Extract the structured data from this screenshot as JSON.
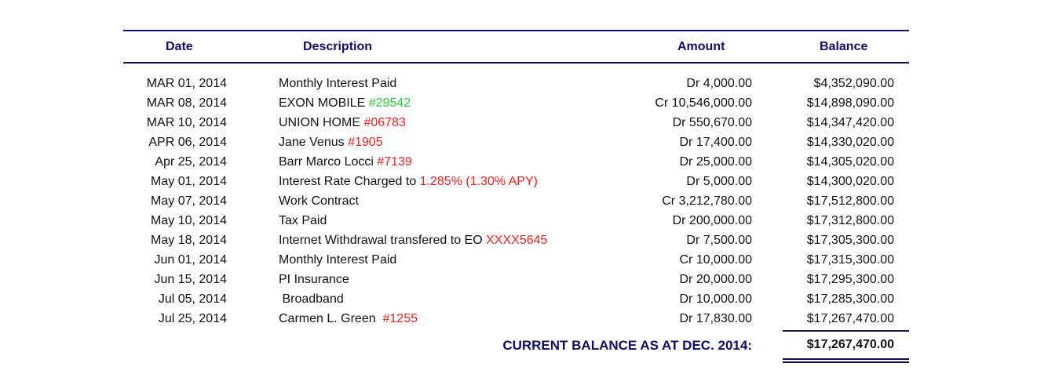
{
  "headers": {
    "date": "Date",
    "description": "Description",
    "amount": "Amount",
    "balance": "Balance"
  },
  "colors": {
    "header": "#0d0d6b",
    "highlight_red": "#ff1a1a",
    "highlight_green": "#22cc33"
  },
  "rows": [
    {
      "date": "MAR 01, 2014",
      "desc": "Monthly Interest Paid",
      "tag": "",
      "tag_color": "",
      "amount": "Dr 4,000.00",
      "balance": "$4,352,090.00"
    },
    {
      "date": "MAR 08, 2014",
      "desc": "EXON MOBILE ",
      "tag": "#29542",
      "tag_color": "#22cc33",
      "amount": "Cr 10,546,000.00",
      "balance": "$14,898,090.00"
    },
    {
      "date": "MAR 10, 2014",
      "desc": "UNION HOME ",
      "tag": "#06783",
      "tag_color": "#ff1a1a",
      "amount": "Dr 550,670.00",
      "balance": "$14,347,420.00"
    },
    {
      "date": "APR 06, 2014",
      "desc": "Jane Venus ",
      "tag": "#1905",
      "tag_color": "#ff1a1a",
      "amount": "Dr 17,400.00",
      "balance": "$14,330,020.00"
    },
    {
      "date": "Apr 25, 2014",
      "desc": "Barr Marco Locci ",
      "tag": "#7139",
      "tag_color": "#ff1a1a",
      "amount": "Dr 25,000.00",
      "balance": "$14,305,020.00"
    },
    {
      "date": "May 01, 2014",
      "desc": "Interest Rate Charged to ",
      "tag": "1.285% (1.30% APY)",
      "tag_color": "#ff1a1a",
      "amount": "Dr 5,000.00",
      "balance": "$14,300,020.00"
    },
    {
      "date": "May 07, 2014",
      "desc": "Work Contract",
      "tag": "",
      "tag_color": "",
      "amount": "Cr 3,212,780.00",
      "balance": "$17,512,800.00"
    },
    {
      "date": "May 10, 2014",
      "desc": "Tax Paid",
      "tag": "",
      "tag_color": "",
      "amount": "Dr 200,000.00",
      "balance": "$17,312,800.00"
    },
    {
      "date": "May 18, 2014",
      "desc": "Internet Withdrawal transfered to EO ",
      "tag": "XXXX5645",
      "tag_color": "#ff1a1a",
      "amount": "Dr 7,500.00",
      "balance": "$17,305,300.00"
    },
    {
      "date": "Jun 01, 2014",
      "desc": "Monthly Interest Paid",
      "tag": "",
      "tag_color": "",
      "amount": "Cr 10,000.00",
      "balance": "$17,315,300.00"
    },
    {
      "date": "Jun 15, 2014",
      "desc": "PI Insurance",
      "tag": "",
      "tag_color": "",
      "amount": "Dr 20,000.00",
      "balance": "$17,295,300.00"
    },
    {
      "date": "Jul 05, 2014",
      "desc": " Broadband",
      "tag": "",
      "tag_color": "",
      "amount": "Dr 10,000.00",
      "balance": "$17,285,300.00"
    },
    {
      "date": "Jul 25, 2014",
      "desc": "Carmen L. Green  ",
      "tag": "#1255",
      "tag_color": "#ff1a1a",
      "amount": "Dr 17,830.00",
      "balance": "$17,267,470.00"
    }
  ],
  "total": {
    "label": "CURRENT BALANCE AS AT DEC. 2014:",
    "value": "$17,267,470.00"
  }
}
